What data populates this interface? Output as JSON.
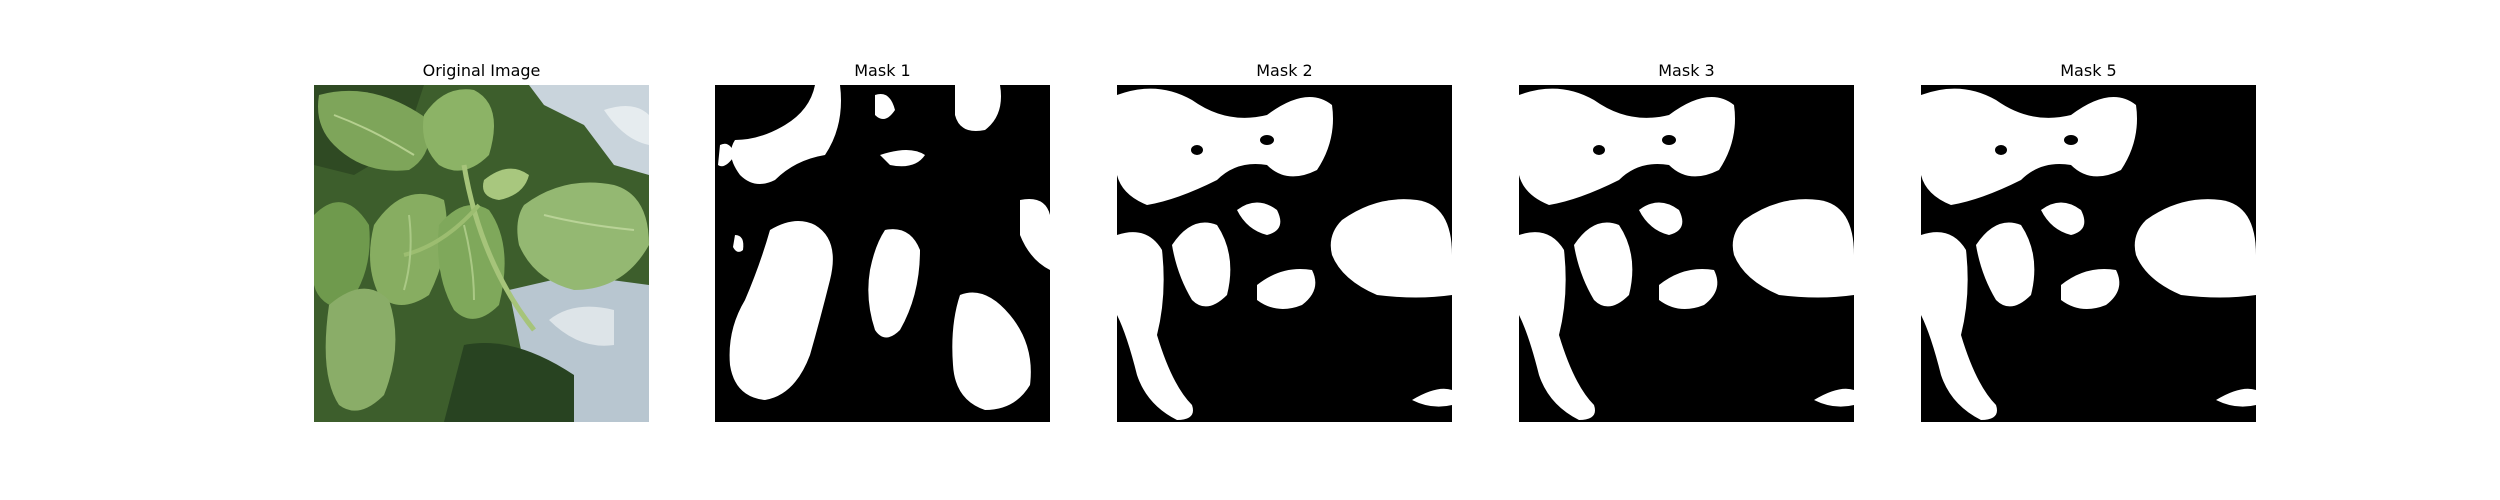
{
  "figure": {
    "panels": [
      {
        "title": "Original Image",
        "kind": "photo"
      },
      {
        "title": "Mask 1",
        "kind": "mask"
      },
      {
        "title": "Mask 2",
        "kind": "mask"
      },
      {
        "title": "Mask 3",
        "kind": "mask"
      },
      {
        "title": "Mask 5",
        "kind": "mask"
      }
    ]
  },
  "colors": {
    "background": "#ffffff",
    "mask_foreground": "#ffffff",
    "mask_background": "#000000",
    "leaf_light": "#8fb36a",
    "leaf_dark": "#2f5a26",
    "container": "#c9d4dc"
  }
}
